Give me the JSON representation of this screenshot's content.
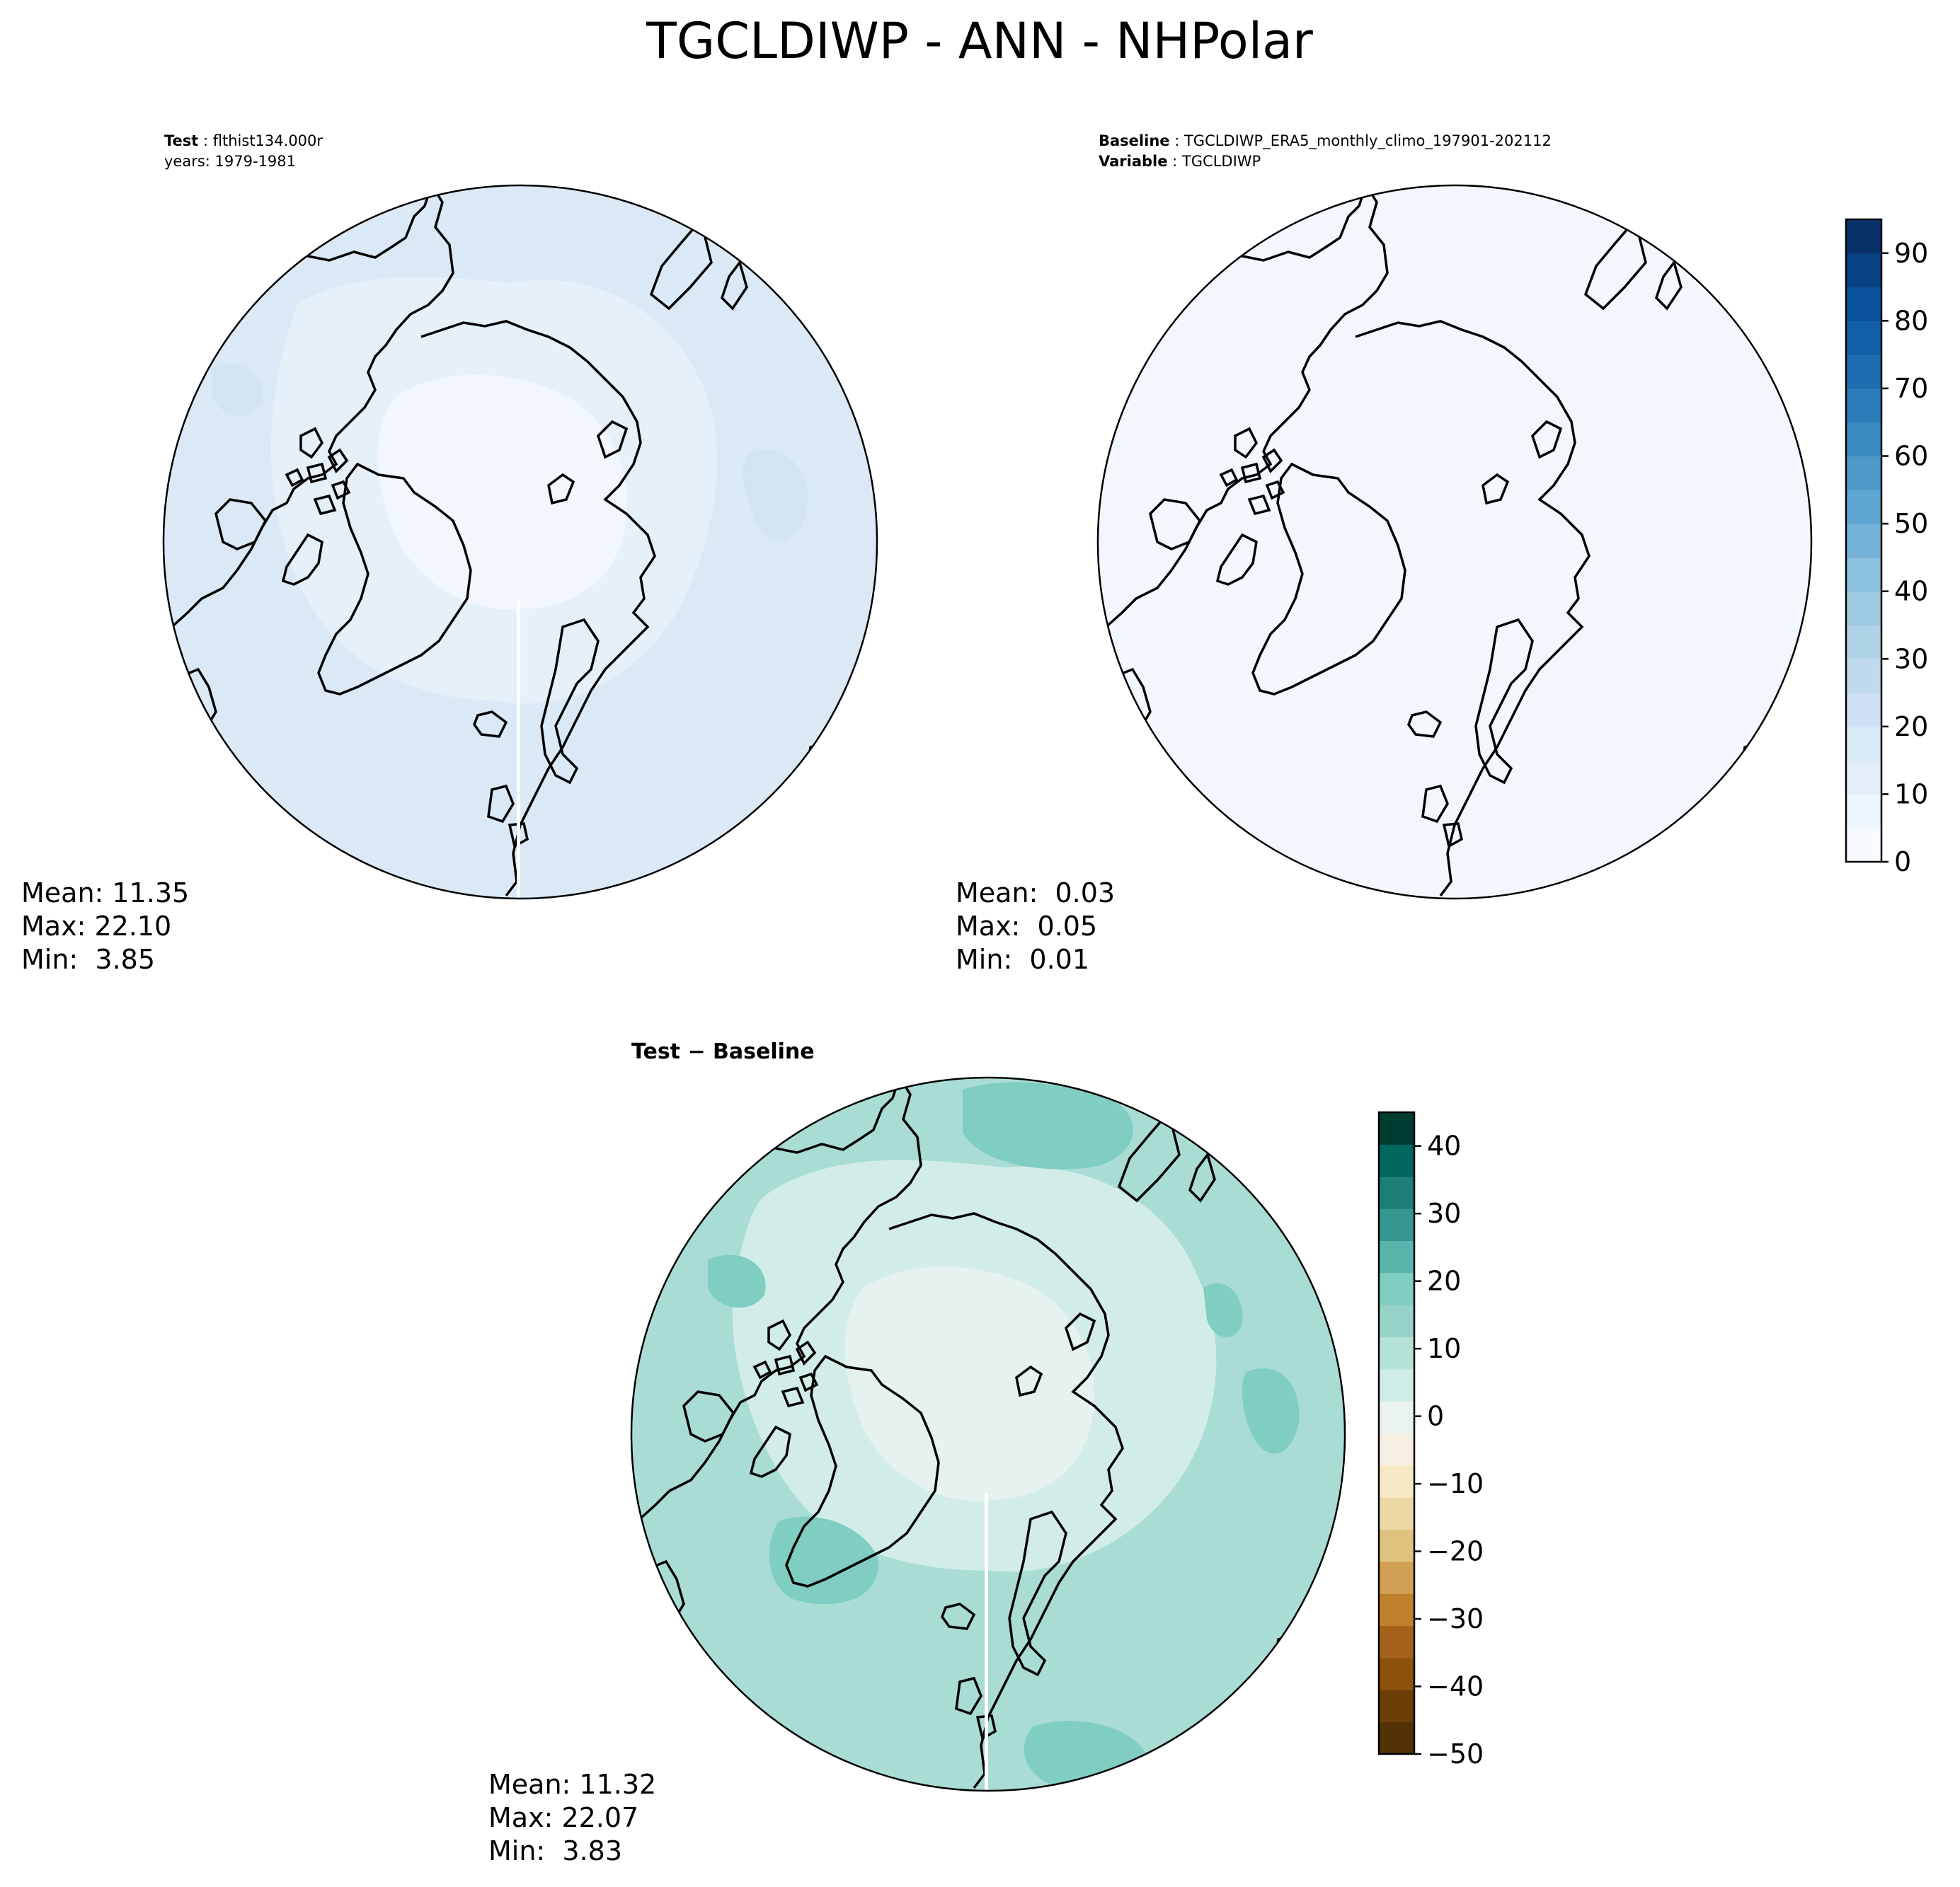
{
  "figure": {
    "title": "TGCLDIWP - ANN - NHPolar"
  },
  "panels": {
    "test": {
      "label_key": "Test",
      "label_sep": ":",
      "label_value": "flthist134.000r",
      "line2": "years: 1979-1981",
      "stats": {
        "mean": "Mean: 11.35",
        "max": "Max: 22.10",
        "min": "Min:  3.85"
      },
      "fill_color": "#dbe9f6",
      "mid_color": "#eef5fc",
      "center_color": "#f2f7fd"
    },
    "baseline": {
      "label_key": "Baseline",
      "label_sep": ":",
      "label_value": "TGCLDIWP_ERA5_monthly_climo_197901-202112",
      "line2_key": "Variable",
      "line2_sep": ":",
      "line2_value": "TGCLDIWP",
      "stats": {
        "mean": "Mean:  0.03",
        "max": "Max:  0.05",
        "min": "Min:  0.01"
      },
      "fill_color": "#f2f7fd"
    },
    "diff": {
      "label": "Test − Baseline",
      "stats": {
        "mean": "Mean: 11.32",
        "max": "Max: 22.07",
        "min": "Min:  3.83"
      },
      "fill_color": "#a9ddd4",
      "mid_color": "#d2ede8",
      "center_color": "#e6f2f0",
      "patch_color": "#80cdc1"
    }
  },
  "colorbars": {
    "test_baseline": {
      "ticks": [
        "0",
        "10",
        "20",
        "30",
        "40",
        "50",
        "60",
        "70",
        "80",
        "90"
      ],
      "tick_values": [
        0,
        10,
        20,
        30,
        40,
        50,
        60,
        70,
        80,
        90
      ],
      "range": [
        0,
        95
      ],
      "colormap": "Blues",
      "colors": [
        "#f7fbff",
        "#eef5fc",
        "#e3eef9",
        "#d9e8f5",
        "#cee0f2",
        "#c1d9ed",
        "#b0d2e7",
        "#9ecae1",
        "#8abfdd",
        "#74b2d8",
        "#60a6d2",
        "#4d99ca",
        "#3b8bc2",
        "#2c7cba",
        "#1f6cb1",
        "#1460a8",
        "#08529d",
        "#084285",
        "#08306b"
      ]
    },
    "diff": {
      "ticks": [
        "40",
        "30",
        "20",
        "10",
        "0",
        "−10",
        "−20",
        "−30",
        "−40",
        "−50"
      ],
      "tick_values": [
        40,
        30,
        20,
        10,
        0,
        -10,
        -20,
        -30,
        -40,
        -50
      ],
      "range": [
        -50,
        45
      ],
      "colormap": "BrBG",
      "colors": [
        "#543005",
        "#6b3d07",
        "#8c510a",
        "#a6611a",
        "#bf812d",
        "#d2a054",
        "#dfc27d",
        "#ebd8a4",
        "#f6e8c3",
        "#f5f0e1",
        "#e9f2f0",
        "#d0ece6",
        "#b4e2d9",
        "#97d3c7",
        "#80cdc1",
        "#5ab4ac",
        "#35978f",
        "#1e7f77",
        "#01665e",
        "#003c30"
      ]
    }
  }
}
